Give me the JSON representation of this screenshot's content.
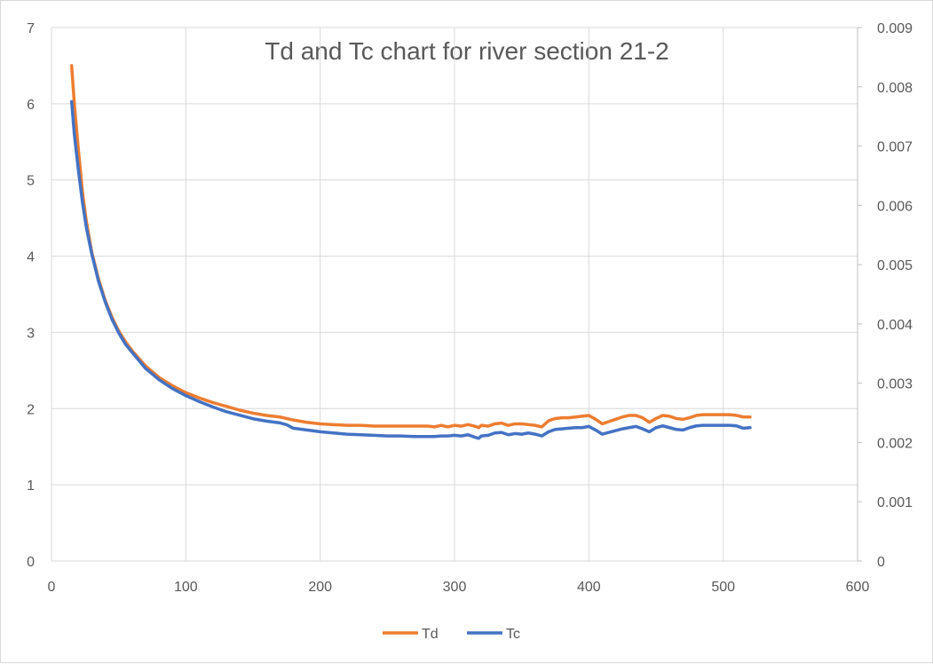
{
  "chart_data": {
    "type": "line",
    "title": "Td and Tc chart for river section 21-2",
    "xlabel": "",
    "ylabel": "",
    "y2label": "",
    "xlim": [
      0,
      600
    ],
    "ylim": [
      0,
      7
    ],
    "y2lim": [
      0,
      0.009
    ],
    "x_ticks": [
      "0",
      "100",
      "200",
      "300",
      "400",
      "500",
      "600"
    ],
    "y_ticks": [
      "0",
      "1",
      "2",
      "3",
      "4",
      "5",
      "6",
      "7"
    ],
    "y2_ticks": [
      "0",
      "0.001",
      "0.002",
      "0.003",
      "0.004",
      "0.005",
      "0.006",
      "0.007",
      "0.008",
      "0.009"
    ],
    "grid": true,
    "legend_position": "bottom",
    "series": [
      {
        "name": "Td",
        "axis": "left",
        "color": "#ED7D31",
        "x": [
          15,
          17,
          20,
          23,
          26,
          30,
          35,
          40,
          45,
          50,
          55,
          60,
          70,
          80,
          90,
          100,
          110,
          120,
          130,
          140,
          150,
          160,
          170,
          175,
          180,
          190,
          200,
          210,
          220,
          230,
          240,
          250,
          260,
          270,
          280,
          285,
          290,
          295,
          300,
          305,
          310,
          315,
          318,
          320,
          325,
          330,
          335,
          340,
          345,
          350,
          355,
          360,
          365,
          370,
          375,
          380,
          385,
          390,
          395,
          400,
          405,
          410,
          415,
          420,
          425,
          430,
          435,
          440,
          445,
          450,
          455,
          460,
          465,
          470,
          475,
          480,
          485,
          490,
          495,
          500,
          505,
          510,
          515,
          520
        ],
        "y": [
          6.5,
          6.0,
          5.4,
          4.85,
          4.45,
          4.05,
          3.7,
          3.42,
          3.2,
          3.02,
          2.88,
          2.76,
          2.56,
          2.41,
          2.3,
          2.21,
          2.14,
          2.08,
          2.03,
          1.98,
          1.94,
          1.91,
          1.89,
          1.87,
          1.85,
          1.82,
          1.8,
          1.79,
          1.78,
          1.78,
          1.77,
          1.77,
          1.77,
          1.77,
          1.77,
          1.76,
          1.78,
          1.76,
          1.78,
          1.77,
          1.79,
          1.77,
          1.75,
          1.78,
          1.77,
          1.8,
          1.81,
          1.78,
          1.8,
          1.8,
          1.79,
          1.78,
          1.76,
          1.84,
          1.87,
          1.88,
          1.88,
          1.89,
          1.9,
          1.91,
          1.86,
          1.8,
          1.83,
          1.86,
          1.89,
          1.91,
          1.91,
          1.88,
          1.82,
          1.87,
          1.91,
          1.9,
          1.87,
          1.86,
          1.88,
          1.91,
          1.92,
          1.92,
          1.92,
          1.92,
          1.92,
          1.91,
          1.89,
          1.89
        ]
      },
      {
        "name": "Tc",
        "axis": "right",
        "color": "#4472C4",
        "x": [
          15,
          17,
          20,
          23,
          26,
          30,
          35,
          40,
          45,
          50,
          55,
          60,
          70,
          80,
          90,
          100,
          110,
          120,
          130,
          140,
          150,
          160,
          170,
          175,
          180,
          190,
          200,
          210,
          220,
          230,
          240,
          250,
          260,
          270,
          280,
          285,
          290,
          295,
          300,
          305,
          310,
          315,
          318,
          320,
          325,
          330,
          335,
          340,
          345,
          350,
          355,
          360,
          365,
          370,
          375,
          380,
          385,
          390,
          395,
          400,
          405,
          410,
          415,
          420,
          425,
          430,
          435,
          440,
          445,
          450,
          455,
          460,
          465,
          470,
          475,
          480,
          485,
          490,
          495,
          500,
          505,
          510,
          515,
          520
        ],
        "y": [
          0.00775,
          0.0072,
          0.0066,
          0.00606,
          0.00562,
          0.00518,
          0.00472,
          0.00437,
          0.00408,
          0.00385,
          0.00366,
          0.00352,
          0.00325,
          0.00306,
          0.00291,
          0.00279,
          0.00269,
          0.0026,
          0.00252,
          0.00246,
          0.0024,
          0.00236,
          0.00233,
          0.0023,
          0.00224,
          0.00221,
          0.00218,
          0.00216,
          0.00214,
          0.00213,
          0.00212,
          0.00211,
          0.00211,
          0.0021,
          0.0021,
          0.0021,
          0.00211,
          0.00211,
          0.00212,
          0.00211,
          0.00213,
          0.00209,
          0.00207,
          0.00211,
          0.00212,
          0.00216,
          0.00217,
          0.00213,
          0.00215,
          0.00214,
          0.00216,
          0.00214,
          0.00211,
          0.00218,
          0.00222,
          0.00223,
          0.00224,
          0.00225,
          0.00225,
          0.00227,
          0.00221,
          0.00214,
          0.00217,
          0.0022,
          0.00223,
          0.00225,
          0.00227,
          0.00223,
          0.00218,
          0.00225,
          0.00228,
          0.00225,
          0.00222,
          0.00221,
          0.00225,
          0.00228,
          0.00229,
          0.00229,
          0.00229,
          0.00229,
          0.00229,
          0.00228,
          0.00224,
          0.00225
        ]
      }
    ]
  }
}
